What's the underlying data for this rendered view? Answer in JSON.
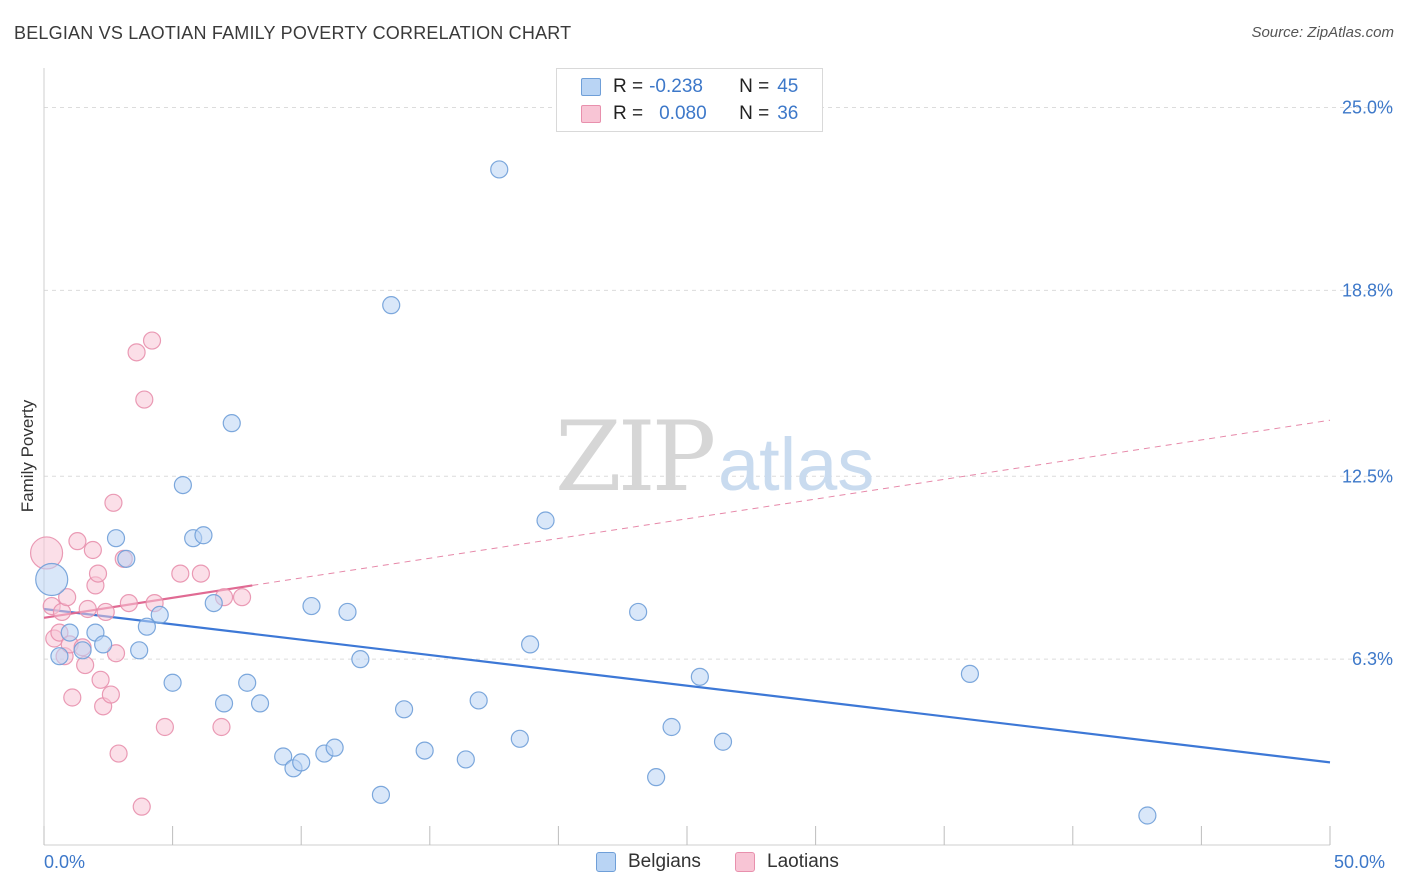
{
  "title": "BELGIAN VS LAOTIAN FAMILY POVERTY CORRELATION CHART",
  "source": "Source: ZipAtlas.com",
  "watermark": {
    "zip": "ZIP",
    "atlas": "atlas"
  },
  "colors": {
    "belgians": "#3d78d6",
    "belgians_fill": "#b9d4f4",
    "laotians": "#e06a93",
    "laotians_fill": "#f8c5d5",
    "axis_label": "#3d78c9",
    "grid": "#dcdcdc"
  },
  "legend": {
    "rows": [
      {
        "r_label": "R =",
        "r_value": "-0.238",
        "n_label": "N =",
        "n_value": "45"
      },
      {
        "r_label": "R =",
        "r_value": "0.080",
        "n_label": "N =",
        "n_value": "36"
      }
    ]
  },
  "bottom_legend": {
    "belgians": "Belgians",
    "laotians": "Laotians"
  },
  "chart_data": {
    "type": "scatter",
    "title": "BELGIAN VS LAOTIAN FAMILY POVERTY CORRELATION CHART",
    "xlabel": "",
    "ylabel": "Family Poverty",
    "xlim": [
      0,
      50
    ],
    "ylim": [
      0,
      26
    ],
    "x_tick_labels": [
      "0.0%",
      "50.0%"
    ],
    "y_ticks": [
      6.3,
      12.5,
      18.8,
      25.0
    ],
    "y_tick_labels": [
      "6.3%",
      "12.5%",
      "18.8%",
      "25.0%"
    ],
    "grid": true,
    "series": [
      {
        "name": "Belgians",
        "r": -0.238,
        "n": 45,
        "trend": {
          "x": [
            0,
            50
          ],
          "y": [
            8.0,
            2.8
          ],
          "style": "solid"
        },
        "points": [
          {
            "x": 0.3,
            "y": 9.0,
            "big": true
          },
          {
            "x": 0.6,
            "y": 6.4
          },
          {
            "x": 1.0,
            "y": 7.2
          },
          {
            "x": 1.5,
            "y": 6.6
          },
          {
            "x": 2.0,
            "y": 7.2
          },
          {
            "x": 2.3,
            "y": 6.8
          },
          {
            "x": 2.8,
            "y": 10.4
          },
          {
            "x": 3.2,
            "y": 9.7
          },
          {
            "x": 3.7,
            "y": 6.6
          },
          {
            "x": 4.0,
            "y": 7.4
          },
          {
            "x": 4.5,
            "y": 7.8
          },
          {
            "x": 5.0,
            "y": 5.5
          },
          {
            "x": 5.4,
            "y": 12.2
          },
          {
            "x": 5.8,
            "y": 10.4
          },
          {
            "x": 6.2,
            "y": 10.5
          },
          {
            "x": 6.6,
            "y": 8.2
          },
          {
            "x": 7.0,
            "y": 4.8
          },
          {
            "x": 7.3,
            "y": 14.3
          },
          {
            "x": 7.9,
            "y": 5.5
          },
          {
            "x": 8.4,
            "y": 4.8
          },
          {
            "x": 9.3,
            "y": 3.0
          },
          {
            "x": 9.7,
            "y": 2.6
          },
          {
            "x": 10.0,
            "y": 2.8
          },
          {
            "x": 10.4,
            "y": 8.1
          },
          {
            "x": 10.9,
            "y": 3.1
          },
          {
            "x": 11.3,
            "y": 3.3
          },
          {
            "x": 11.8,
            "y": 7.9
          },
          {
            "x": 12.3,
            "y": 6.3
          },
          {
            "x": 13.1,
            "y": 1.7
          },
          {
            "x": 13.5,
            "y": 18.3
          },
          {
            "x": 14.0,
            "y": 4.6
          },
          {
            "x": 14.8,
            "y": 3.2
          },
          {
            "x": 16.4,
            "y": 2.9
          },
          {
            "x": 16.9,
            "y": 4.9
          },
          {
            "x": 17.7,
            "y": 22.9
          },
          {
            "x": 18.5,
            "y": 3.6
          },
          {
            "x": 18.9,
            "y": 6.8
          },
          {
            "x": 19.5,
            "y": 11.0
          },
          {
            "x": 23.1,
            "y": 7.9
          },
          {
            "x": 23.8,
            "y": 2.3
          },
          {
            "x": 24.4,
            "y": 4.0
          },
          {
            "x": 25.5,
            "y": 5.7
          },
          {
            "x": 26.4,
            "y": 3.5
          },
          {
            "x": 36.0,
            "y": 5.8
          },
          {
            "x": 42.9,
            "y": 1.0
          }
        ]
      },
      {
        "name": "Laotians",
        "r": 0.08,
        "n": 36,
        "trend": {
          "x": [
            0,
            8.1
          ],
          "y": [
            7.7,
            8.8
          ],
          "style": "solid"
        },
        "trend_extended": {
          "x": [
            8.1,
            50
          ],
          "y": [
            8.8,
            14.4
          ],
          "style": "dashed"
        },
        "points": [
          {
            "x": 0.1,
            "y": 9.9,
            "big": true
          },
          {
            "x": 0.3,
            "y": 8.1
          },
          {
            "x": 0.4,
            "y": 7.0
          },
          {
            "x": 0.6,
            "y": 7.2
          },
          {
            "x": 0.7,
            "y": 7.9
          },
          {
            "x": 0.8,
            "y": 6.4
          },
          {
            "x": 0.9,
            "y": 8.4
          },
          {
            "x": 1.0,
            "y": 6.8
          },
          {
            "x": 1.1,
            "y": 5.0
          },
          {
            "x": 1.3,
            "y": 10.3
          },
          {
            "x": 1.5,
            "y": 6.7
          },
          {
            "x": 1.6,
            "y": 6.1
          },
          {
            "x": 1.7,
            "y": 8.0
          },
          {
            "x": 1.9,
            "y": 10.0
          },
          {
            "x": 2.0,
            "y": 8.8
          },
          {
            "x": 2.1,
            "y": 9.2
          },
          {
            "x": 2.2,
            "y": 5.6
          },
          {
            "x": 2.3,
            "y": 4.7
          },
          {
            "x": 2.4,
            "y": 7.9
          },
          {
            "x": 2.6,
            "y": 5.1
          },
          {
            "x": 2.7,
            "y": 11.6
          },
          {
            "x": 2.8,
            "y": 6.5
          },
          {
            "x": 2.9,
            "y": 3.1
          },
          {
            "x": 3.1,
            "y": 9.7
          },
          {
            "x": 3.3,
            "y": 8.2
          },
          {
            "x": 3.6,
            "y": 16.7
          },
          {
            "x": 3.8,
            "y": 1.3
          },
          {
            "x": 3.9,
            "y": 15.1
          },
          {
            "x": 4.2,
            "y": 17.1
          },
          {
            "x": 4.3,
            "y": 8.2
          },
          {
            "x": 4.7,
            "y": 4.0
          },
          {
            "x": 5.3,
            "y": 9.2
          },
          {
            "x": 6.1,
            "y": 9.2
          },
          {
            "x": 6.9,
            "y": 4.0
          },
          {
            "x": 7.0,
            "y": 8.4
          },
          {
            "x": 7.7,
            "y": 8.4
          }
        ]
      }
    ]
  }
}
